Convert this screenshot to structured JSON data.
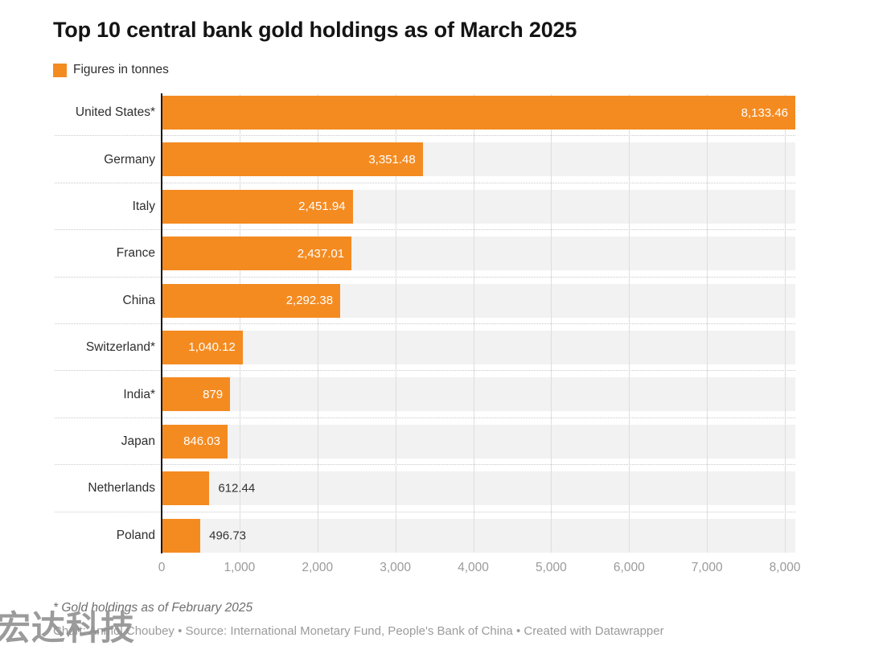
{
  "header": {
    "title": "Top 10 central bank gold holdings as of March 2025",
    "legend_label": "Figures in tonnes"
  },
  "chart_data": {
    "type": "bar",
    "orientation": "horizontal",
    "unit": "tonnes",
    "title": "Top 10 central bank gold holdings as of March 2025",
    "legend": "Figures in tonnes",
    "categories": [
      "United States*",
      "Germany",
      "Italy",
      "France",
      "China",
      "Switzerland*",
      "India*",
      "Japan",
      "Netherlands",
      "Poland"
    ],
    "values": [
      8133.46,
      3351.48,
      2451.94,
      2437.01,
      2292.38,
      1040.12,
      879,
      846.03,
      612.44,
      496.73
    ],
    "bars": [
      {
        "category": "United States*",
        "value": 8133.46,
        "display": "8,133.46",
        "label_position": "inside"
      },
      {
        "category": "Germany",
        "value": 3351.48,
        "display": "3,351.48",
        "label_position": "inside"
      },
      {
        "category": "Italy",
        "value": 2451.94,
        "display": "2,451.94",
        "label_position": "inside"
      },
      {
        "category": "France",
        "value": 2437.01,
        "display": "2,437.01",
        "label_position": "inside"
      },
      {
        "category": "China",
        "value": 2292.38,
        "display": "2,292.38",
        "label_position": "inside"
      },
      {
        "category": "Switzerland*",
        "value": 1040.12,
        "display": "1,040.12",
        "label_position": "inside"
      },
      {
        "category": "India*",
        "value": 879,
        "display": "879",
        "label_position": "inside"
      },
      {
        "category": "Japan",
        "value": 846.03,
        "display": "846.03",
        "label_position": "inside"
      },
      {
        "category": "Netherlands",
        "value": 612.44,
        "display": "612.44",
        "label_position": "outside"
      },
      {
        "category": "Poland",
        "value": 496.73,
        "display": "496.73",
        "label_position": "outside"
      }
    ],
    "x_axis": {
      "min": 0,
      "max": 8133.46,
      "gridlines": true,
      "ticks": [
        {
          "value": 0,
          "label": "0"
        },
        {
          "value": 1000,
          "label": "1,000"
        },
        {
          "value": 2000,
          "label": "2,000"
        },
        {
          "value": 3000,
          "label": "3,000"
        },
        {
          "value": 4000,
          "label": "4,000"
        },
        {
          "value": 5000,
          "label": "5,000"
        },
        {
          "value": 6000,
          "label": "6,000"
        },
        {
          "value": 7000,
          "label": "7,000"
        },
        {
          "value": 8000,
          "label": "8,000"
        }
      ]
    },
    "colors": {
      "bar": "#f48b21",
      "row_band": "#f2f2f2",
      "gridline": "#dedede",
      "separator": "#c9c9c9",
      "axis_line": "#1a1a1a",
      "title_text": "#141414",
      "category_label": "#2e2e2e",
      "value_inside": "#ffffff",
      "value_outside": "#333333",
      "tick_label": "#9a9a9a",
      "footnote_text": "#6e6e6e",
      "byline_text": "#9b9b9b",
      "watermark_text": "#8e8e8e"
    }
  },
  "footer": {
    "footnote": "* Gold holdings as of February 2025",
    "byline": "Chart: Anmol Choubey • Source: International Monetary Fund, People's Bank of China • Created with Datawrapper",
    "watermark": "宏达科技"
  }
}
